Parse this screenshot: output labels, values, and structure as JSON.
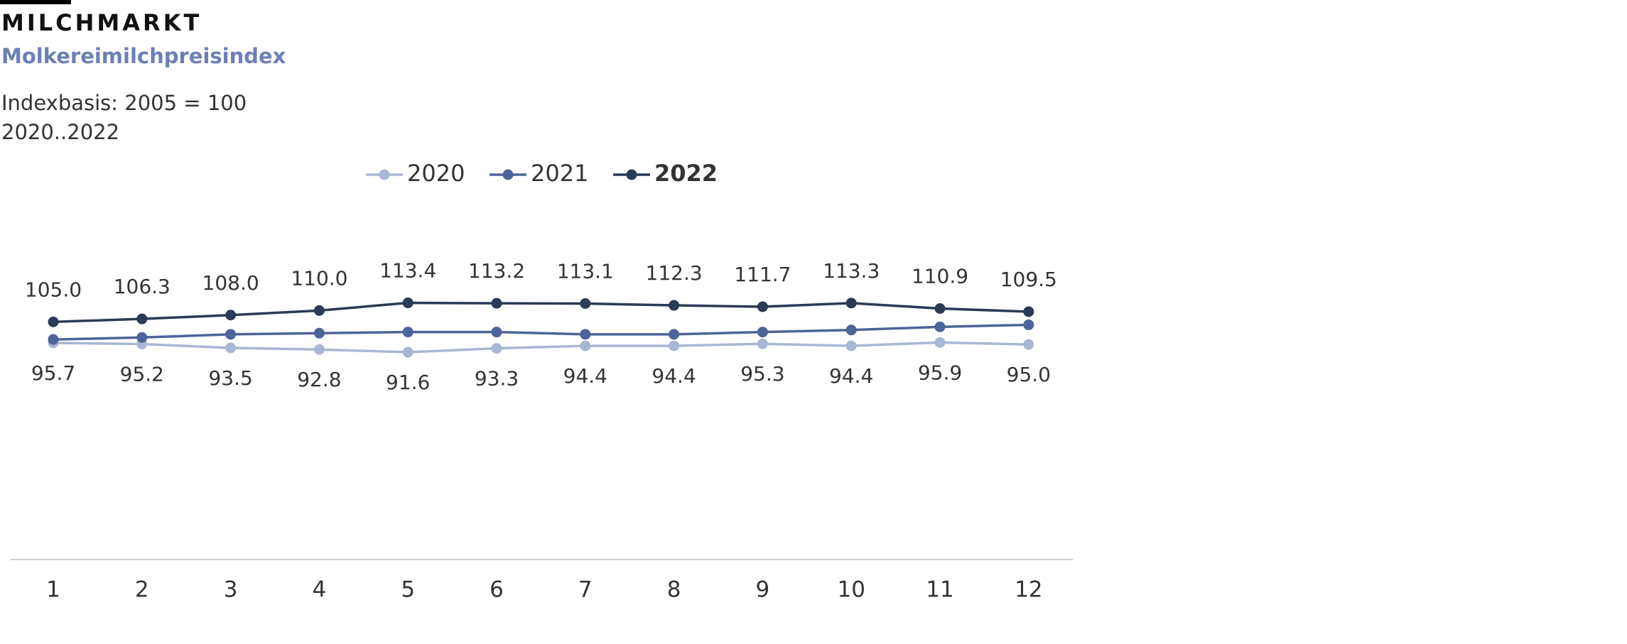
{
  "chart_data": {
    "type": "line",
    "title": "MILCHMARKT",
    "subtitle": "Molkereimilchpreisindex",
    "notes": [
      "Indexbasis: 2005 = 100",
      "2020..2022"
    ],
    "categories": [
      "1",
      "2",
      "3",
      "4",
      "5",
      "6",
      "7",
      "8",
      "9",
      "10",
      "11",
      "12"
    ],
    "ylim": [
      0,
      160
    ],
    "series": [
      {
        "name": "2020",
        "color": "#a9b7d4",
        "label_position": "below",
        "values": [
          95.7,
          95.2,
          93.5,
          92.8,
          91.6,
          93.3,
          94.4,
          94.4,
          95.3,
          94.4,
          95.9,
          95.0
        ],
        "value_labels": [
          "95.7",
          "95.2",
          "93.5",
          "92.8",
          "91.6",
          "93.3",
          "94.4",
          "94.4",
          "95.3",
          "94.4",
          "95.9",
          "95.0"
        ]
      },
      {
        "name": "2021",
        "color": "#4d6499",
        "values": [
          97.2,
          98.1,
          99.5,
          100.0,
          100.5,
          100.5,
          99.5,
          99.5,
          100.5,
          101.4,
          102.8,
          103.7
        ]
      },
      {
        "name": "2022",
        "color": "#2b3a55",
        "label_position": "above",
        "values": [
          105.0,
          106.3,
          108.0,
          110.0,
          113.4,
          113.2,
          113.1,
          112.3,
          111.7,
          113.3,
          110.9,
          109.5
        ],
        "value_labels": [
          "105.0",
          "106.3",
          "108.0",
          "110.0",
          "113.4",
          "113.2",
          "113.1",
          "112.3",
          "111.7",
          "113.3",
          "110.9",
          "109.5"
        ]
      }
    ]
  }
}
